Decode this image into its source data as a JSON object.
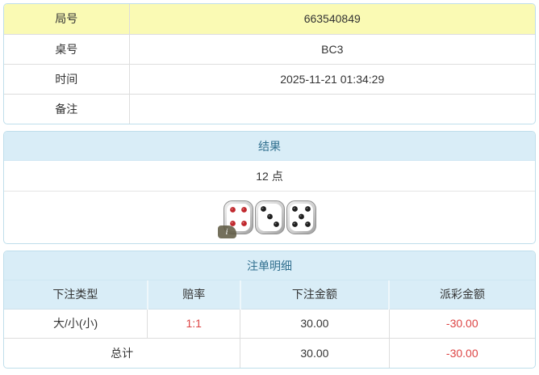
{
  "colors": {
    "highlight_yellow": "#fafab4",
    "heading_bg": "#d9edf7",
    "heading_text": "#31708f",
    "panel_border": "#bfdeeb",
    "negative_red": "#dd4444",
    "die_pip_red": "#c0282d",
    "die_pip_black": "#1f1f1f"
  },
  "info_table": {
    "rows": [
      {
        "label": "局号",
        "value": "663540849"
      },
      {
        "label": "桌号",
        "value": "BC3"
      },
      {
        "label": "时间",
        "value": "2025-11-21 01:34:29"
      },
      {
        "label": "备注",
        "value": ""
      }
    ]
  },
  "result_panel": {
    "title": "结果",
    "points": "12 点",
    "dice": [
      {
        "value": 4,
        "color": "red"
      },
      {
        "value": 3,
        "color": "black"
      },
      {
        "value": 5,
        "color": "black"
      }
    ],
    "info_badge": "i"
  },
  "bets_panel": {
    "title": "注单明细",
    "columns": [
      "下注类型",
      "赔率",
      "下注金额",
      "派彩金额"
    ],
    "rows": [
      {
        "bet_type": "大/小(小)",
        "odds": "1:1",
        "bet_amount": "30.00",
        "payout": "-30.00"
      }
    ],
    "total": {
      "label": "总计",
      "bet_amount": "30.00",
      "payout": "-30.00"
    }
  }
}
